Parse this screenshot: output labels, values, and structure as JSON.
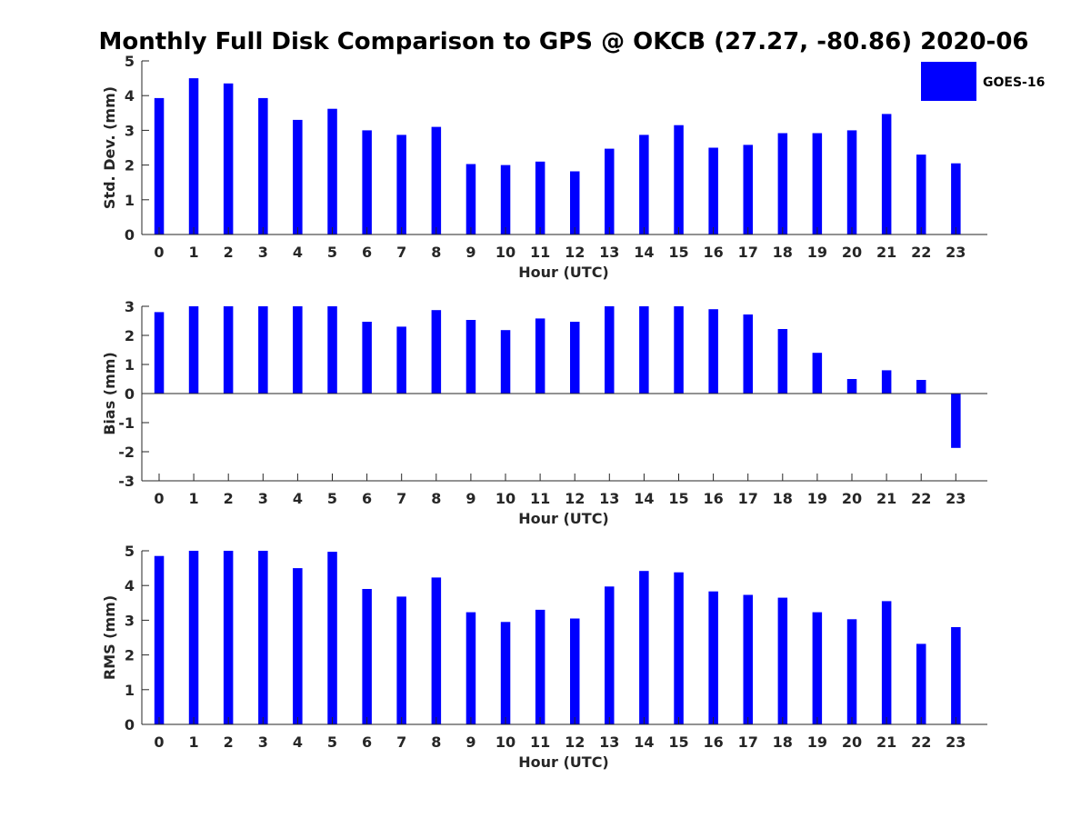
{
  "title": "Monthly Full Disk Comparison to GPS @ OKCB (27.27, -80.86) 2020-06",
  "legend": {
    "label": "GOES-16",
    "color": "#0000ff",
    "placement": "top-right"
  },
  "chart_data": [
    {
      "type": "bar",
      "xlabel": "Hour (UTC)",
      "ylabel": "Std. Dev. (mm)",
      "ylim": [
        0,
        5
      ],
      "yticks": [
        "0",
        "1",
        "2",
        "3",
        "4",
        "5"
      ],
      "categories": [
        "0",
        "1",
        "2",
        "3",
        "4",
        "5",
        "6",
        "7",
        "8",
        "9",
        "10",
        "11",
        "12",
        "13",
        "14",
        "15",
        "16",
        "17",
        "18",
        "19",
        "20",
        "21",
        "22",
        "23"
      ],
      "series": [
        {
          "name": "GOES-16",
          "color": "#0000ff",
          "values": [
            3.93,
            4.5,
            4.35,
            3.93,
            3.3,
            3.62,
            3.0,
            2.87,
            3.1,
            2.03,
            2.0,
            2.1,
            1.82,
            2.47,
            2.87,
            3.15,
            2.5,
            2.58,
            2.92,
            2.92,
            3.0,
            3.47,
            2.3,
            2.05
          ]
        }
      ]
    },
    {
      "type": "bar",
      "xlabel": "Hour (UTC)",
      "ylabel": "Bias (mm)",
      "ylim": [
        -3,
        3
      ],
      "yticks": [
        "-3",
        "-2",
        "-1",
        "0",
        "1",
        "2",
        "3"
      ],
      "categories": [
        "0",
        "1",
        "2",
        "3",
        "4",
        "5",
        "6",
        "7",
        "8",
        "9",
        "10",
        "11",
        "12",
        "13",
        "14",
        "15",
        "16",
        "17",
        "18",
        "19",
        "20",
        "21",
        "22",
        "23"
      ],
      "series": [
        {
          "name": "GOES-16",
          "color": "#0000ff",
          "values": [
            2.8,
            3.0,
            3.0,
            3.0,
            3.0,
            3.0,
            2.47,
            2.3,
            2.87,
            2.53,
            2.18,
            2.58,
            2.47,
            3.0,
            3.0,
            3.0,
            2.9,
            2.72,
            2.22,
            1.4,
            0.5,
            0.8,
            0.47,
            -1.87
          ]
        }
      ]
    },
    {
      "type": "bar",
      "xlabel": "Hour (UTC)",
      "ylabel": "RMS (mm)",
      "ylim": [
        0,
        5
      ],
      "yticks": [
        "0",
        "1",
        "2",
        "3",
        "4",
        "5"
      ],
      "categories": [
        "0",
        "1",
        "2",
        "3",
        "4",
        "5",
        "6",
        "7",
        "8",
        "9",
        "10",
        "11",
        "12",
        "13",
        "14",
        "15",
        "16",
        "17",
        "18",
        "19",
        "20",
        "21",
        "22",
        "23"
      ],
      "series": [
        {
          "name": "GOES-16",
          "color": "#0000ff",
          "values": [
            4.85,
            5.0,
            5.0,
            5.0,
            4.5,
            4.97,
            3.9,
            3.68,
            4.23,
            3.23,
            2.95,
            3.3,
            3.05,
            3.97,
            4.42,
            4.38,
            3.83,
            3.73,
            3.65,
            3.23,
            3.03,
            3.55,
            2.32,
            2.8
          ]
        }
      ]
    }
  ]
}
